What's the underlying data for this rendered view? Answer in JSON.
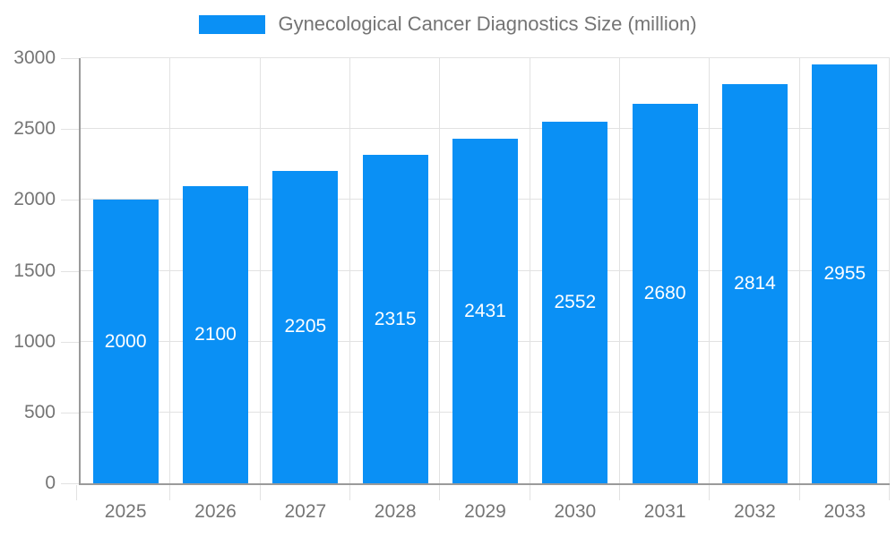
{
  "legend": {
    "label": "Gynecological Cancer Diagnostics Size (million)"
  },
  "chart_data": {
    "type": "bar",
    "title": "Gynecological Cancer Diagnostics Size (million)",
    "categories": [
      "2025",
      "2026",
      "2027",
      "2028",
      "2029",
      "2030",
      "2031",
      "2032",
      "2033"
    ],
    "values": [
      2000,
      2100,
      2205,
      2315,
      2431,
      2552,
      2680,
      2814,
      2955
    ],
    "xlabel": "",
    "ylabel": "",
    "ylim": [
      0,
      3000
    ],
    "yticks": [
      0,
      500,
      1000,
      1500,
      2000,
      2500,
      3000
    ],
    "grid": "on",
    "legend_position": "top-center",
    "colors": {
      "bar": "#0a90f5",
      "bar_value_label": "#ffffff",
      "grid": "#e2e2e2",
      "axis": "#9a9a9a",
      "tick_text": "#757575",
      "legend_text": "#747474",
      "background": "#ffffff"
    }
  }
}
